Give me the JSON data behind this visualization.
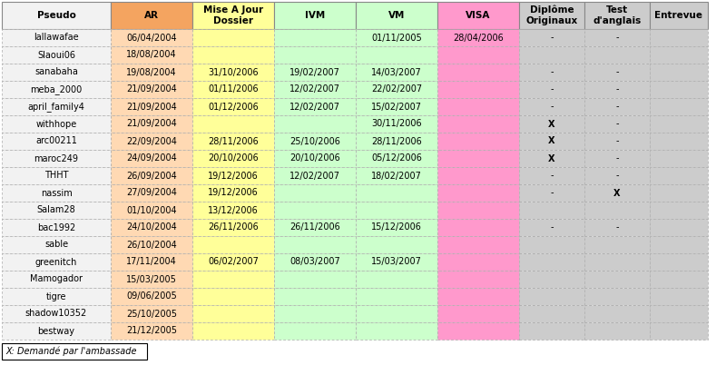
{
  "headers": [
    "Pseudo",
    "AR",
    "Mise A Jour\nDossier",
    "IVM",
    "VM",
    "VISA",
    "Diplôme\nOriginaux",
    "Test\nd'anglais",
    "Entrevue"
  ],
  "rows": [
    [
      "lallawafae",
      "06/04/2004",
      "",
      "",
      "01/11/2005",
      "28/04/2006",
      "-",
      "-",
      ""
    ],
    [
      "Slaoui06",
      "18/08/2004",
      "",
      "",
      "",
      "",
      "",
      "",
      ""
    ],
    [
      "sanabaha",
      "19/08/2004",
      "31/10/2006",
      "19/02/2007",
      "14/03/2007",
      "",
      "-",
      "-",
      ""
    ],
    [
      "meba_2000",
      "21/09/2004",
      "01/11/2006",
      "12/02/2007",
      "22/02/2007",
      "",
      "-",
      "-",
      ""
    ],
    [
      "april_family4",
      "21/09/2004",
      "01/12/2006",
      "12/02/2007",
      "15/02/2007",
      "",
      "-",
      "-",
      ""
    ],
    [
      "withhope",
      "21/09/2004",
      "",
      "",
      "30/11/2006",
      "",
      "X",
      "-",
      ""
    ],
    [
      "arc00211",
      "22/09/2004",
      "28/11/2006",
      "25/10/2006",
      "28/11/2006",
      "",
      "X",
      "-",
      ""
    ],
    [
      "maroc249",
      "24/09/2004",
      "20/10/2006",
      "20/10/2006",
      "05/12/2006",
      "",
      "X",
      "-",
      ""
    ],
    [
      "THHT",
      "26/09/2004",
      "19/12/2006",
      "12/02/2007",
      "18/02/2007",
      "",
      "-",
      "-",
      ""
    ],
    [
      "nassim",
      "27/09/2004",
      "19/12/2006",
      "",
      "",
      "",
      "-",
      "X",
      ""
    ],
    [
      "Salam28",
      "01/10/2004",
      "13/12/2006",
      "",
      "",
      "",
      "",
      "",
      ""
    ],
    [
      "bac1992",
      "24/10/2004",
      "26/11/2006",
      "26/11/2006",
      "15/12/2006",
      "",
      "-",
      "-",
      ""
    ],
    [
      "sable",
      "26/10/2004",
      "",
      "",
      "",
      "",
      "",
      "",
      ""
    ],
    [
      "greenitch",
      "17/11/2004",
      "06/02/2007",
      "08/03/2007",
      "15/03/2007",
      "",
      "",
      "",
      ""
    ],
    [
      "Mamogador",
      "15/03/2005",
      "",
      "",
      "",
      "",
      "",
      "",
      ""
    ],
    [
      "tigre",
      "09/06/2005",
      "",
      "",
      "",
      "",
      "",
      "",
      ""
    ],
    [
      "shadow10352",
      "25/10/2005",
      "",
      "",
      "",
      "",
      "",
      "",
      ""
    ],
    [
      "bestway",
      "21/12/2005",
      "",
      "",
      "",
      "",
      "",
      "",
      ""
    ]
  ],
  "header_col_colors": [
    "#f2f2f2",
    "#f4a460",
    "#ffff99",
    "#ccffcc",
    "#ccffcc",
    "#ff99cc",
    "#cccccc",
    "#cccccc",
    "#cccccc"
  ],
  "row_col_colors": [
    "#f2f2f2",
    "#ffd9b3",
    "#ffff99",
    "#ccffcc",
    "#ccffcc",
    "#ff99cc",
    "#cccccc",
    "#cccccc",
    "#cccccc"
  ],
  "visa_row_color_empty": "#ff99cc",
  "footer_text": "X: Demandé par l'ambassade",
  "font_size": 7.0,
  "header_font_size": 7.5,
  "fig_width": 8.0,
  "fig_height": 4.24,
  "dpi": 100
}
